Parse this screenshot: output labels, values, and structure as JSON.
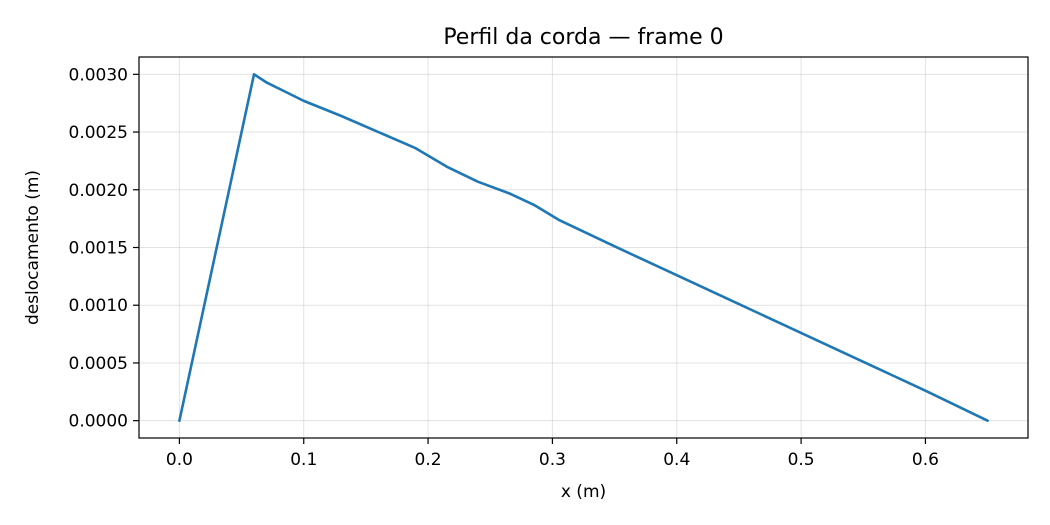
{
  "chart_data": {
    "type": "line",
    "title": "Perfil da corda — frame 0",
    "xlabel": "x (m)",
    "ylabel": "deslocamento (m)",
    "xlim": [
      -0.0325,
      0.6825
    ],
    "ylim": [
      -0.00015,
      0.00315
    ],
    "xticks": [
      0.0,
      0.1,
      0.2,
      0.3,
      0.4,
      0.5,
      0.6
    ],
    "xtick_labels": [
      "0.0",
      "0.1",
      "0.2",
      "0.3",
      "0.4",
      "0.5",
      "0.6"
    ],
    "yticks": [
      0.0,
      0.0005,
      0.001,
      0.0015,
      0.002,
      0.0025,
      0.003
    ],
    "ytick_labels": [
      "0.0000",
      "0.0005",
      "0.0010",
      "0.0015",
      "0.0020",
      "0.0025",
      "0.0030"
    ],
    "grid": true,
    "series": [
      {
        "color": "#1f77b4",
        "x": [
          0.0,
          0.06,
          0.07,
          0.085,
          0.1,
          0.13,
          0.16,
          0.19,
          0.215,
          0.24,
          0.265,
          0.285,
          0.305,
          0.35,
          0.4,
          0.45,
          0.5,
          0.55,
          0.6,
          0.65
        ],
        "y": [
          0.0,
          0.003,
          0.00293,
          0.00285,
          0.00277,
          0.00264,
          0.0025,
          0.00236,
          0.0022,
          0.00207,
          0.00197,
          0.00187,
          0.00174,
          0.00151,
          0.00126,
          0.00101,
          0.00076,
          0.00051,
          0.00026,
          0.0
        ]
      }
    ]
  }
}
